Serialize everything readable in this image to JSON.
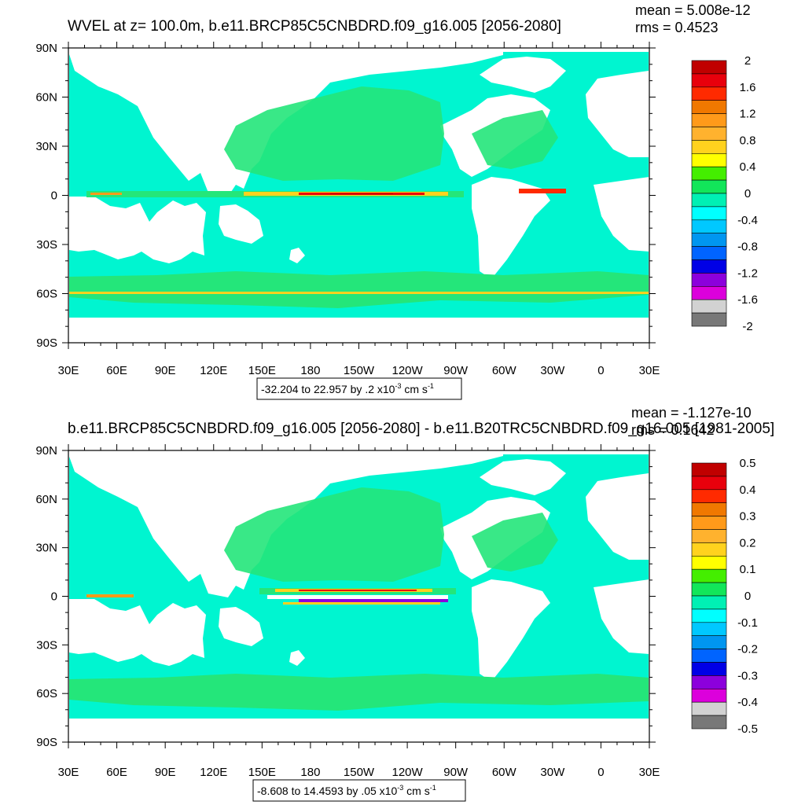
{
  "chart_data": [
    {
      "type": "heatmap",
      "title": "WVEL at z= 100.0m, b.e11.BRCP85C5CNBDRD.f09_g16.005 [2056-2080]",
      "mean_text": "mean = 5.008e-12",
      "rms_text": "rms = 0.4523",
      "x_ticks": [
        "30E",
        "60E",
        "90E",
        "120E",
        "150E",
        "180",
        "150W",
        "120W",
        "90W",
        "60W",
        "30W",
        "0",
        "30E"
      ],
      "y_ticks": [
        "90N",
        "60N",
        "30N",
        "0",
        "30S",
        "60S",
        "90S"
      ],
      "colorbar_labels": [
        "2",
        "1.6",
        "1.2",
        "0.8",
        "0.4",
        "0",
        "-0.4",
        "-0.8",
        "-1.2",
        "-1.6",
        "-2"
      ],
      "range_text": "-32.204 to 22.957 by .2 x10",
      "range_exp": "-3",
      "range_units": " cm s",
      "range_units_exp": "-1"
    },
    {
      "type": "heatmap",
      "title": "b.e11.BRCP85C5CNBDRD.f09_g16.005 [2056-2080] - b.e11.B20TRC5CNBDRD.f09_g16.005 [1981-2005]",
      "mean_text": "mean = -1.127e-10",
      "rms_text": "rms = 0.1642",
      "x_ticks": [
        "30E",
        "60E",
        "90E",
        "120E",
        "150E",
        "180",
        "150W",
        "120W",
        "90W",
        "60W",
        "30W",
        "0",
        "30E"
      ],
      "y_ticks": [
        "90N",
        "60N",
        "30N",
        "0",
        "30S",
        "60S",
        "90S"
      ],
      "colorbar_labels": [
        "0.5",
        "0.4",
        "0.3",
        "0.2",
        "0.1",
        "0",
        "-0.1",
        "-0.2",
        "-0.3",
        "-0.4",
        "-0.5"
      ],
      "range_text": "-8.608 to 14.4593 by .05 x10",
      "range_exp": "-3",
      "range_units": " cm s",
      "range_units_exp": "-1"
    }
  ],
  "colors": {
    "colorbar": [
      "#c00000",
      "#e8000c",
      "#ff2a00",
      "#f07800",
      "#ff9a1a",
      "#ffb22e",
      "#ffd21e",
      "#ffff00",
      "#44ee00",
      "#12e65a",
      "#00f0b4",
      "#00ffff",
      "#00c8ff",
      "#0096f0",
      "#0064ff",
      "#0000e6",
      "#8c00dc",
      "#dc00dc",
      "#d2d2d2",
      "#787878"
    ],
    "ocean": "#00f5d0",
    "band": "#24e67a"
  }
}
